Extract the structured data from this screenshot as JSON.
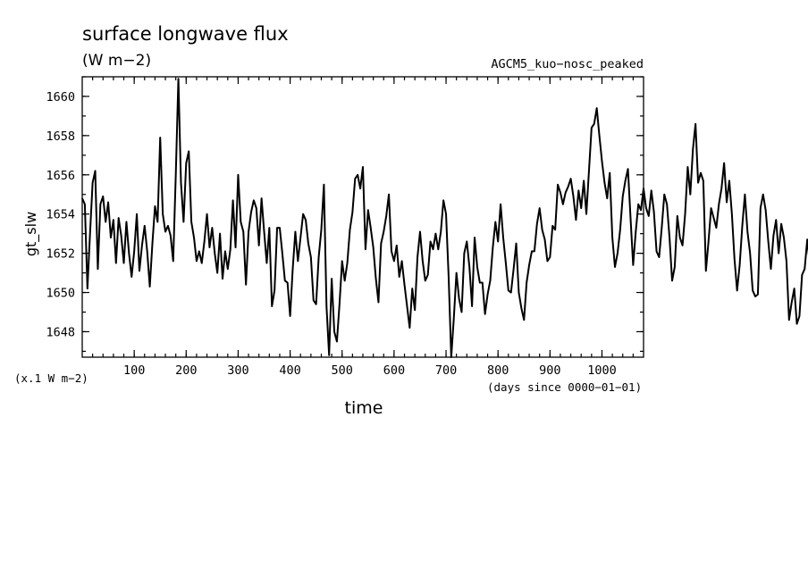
{
  "page": {
    "title": "surface longwave flux",
    "units": "(W m−2)",
    "run_name": "AGCM5_kuo−nosc_peaked",
    "y_axis_label": "gt_slw",
    "y_scale_note": "(x.1 W m−2)",
    "x_axis_label": "time",
    "x_axis_units": "(days since 0000−01−01)"
  },
  "chart_data": {
    "type": "line",
    "title": "surface longwave flux",
    "subtitle": "(W m−2)",
    "annotation": "AGCM5_kuo−nosc_peaked",
    "xlabel": "time",
    "ylabel": "gt_slw",
    "xlim": [
      0,
      1080
    ],
    "ylim": [
      1646.7,
      1661.0
    ],
    "x_ticks": [
      100,
      200,
      300,
      400,
      500,
      600,
      700,
      800,
      900,
      1000
    ],
    "y_ticks": [
      1648,
      1650,
      1652,
      1654,
      1656,
      1658,
      1660
    ],
    "x_minor_step": 20,
    "y_minor_step": 1,
    "grid": false,
    "x_values_start": 0,
    "x_values_step": 5,
    "series": [
      {
        "values": [
          1654.8,
          1654.5,
          1650.2,
          1653.0,
          1655.6,
          1656.2,
          1651.2,
          1654.5,
          1654.9,
          1653.6,
          1654.6,
          1652.8,
          1653.7,
          1651.5,
          1653.8,
          1652.9,
          1651.5,
          1653.6,
          1652.0,
          1650.8,
          1652.1,
          1654.0,
          1651.1,
          1652.4,
          1653.4,
          1652.1,
          1650.3,
          1652.5,
          1654.4,
          1653.6,
          1657.9,
          1654.0,
          1653.1,
          1653.4,
          1652.9,
          1651.6,
          1656.0,
          1660.9,
          1655.6,
          1653.6,
          1656.6,
          1657.2,
          1653.6,
          1652.8,
          1651.6,
          1652.1,
          1651.5,
          1652.6,
          1654.0,
          1652.3,
          1653.3,
          1652.0,
          1651.0,
          1653.0,
          1650.7,
          1652.1,
          1651.2,
          1652.2,
          1654.7,
          1652.3,
          1656.0,
          1653.6,
          1653.1,
          1650.4,
          1653.1,
          1654.1,
          1654.7,
          1654.3,
          1652.4,
          1654.8,
          1653.1,
          1651.5,
          1653.3,
          1649.3,
          1650.1,
          1653.3,
          1653.3,
          1652.0,
          1650.6,
          1650.5,
          1648.8,
          1651.2,
          1653.1,
          1651.6,
          1652.8,
          1654.0,
          1653.7,
          1652.5,
          1651.8,
          1649.6,
          1649.4,
          1651.8,
          1653.2,
          1655.5,
          1649.3,
          1646.8,
          1650.7,
          1648.0,
          1647.5,
          1649.4,
          1651.6,
          1650.6,
          1651.5,
          1653.2,
          1654.1,
          1655.8,
          1656.0,
          1655.3,
          1656.4,
          1652.2,
          1654.2,
          1653.3,
          1652.3,
          1650.7,
          1649.5,
          1652.5,
          1653.1,
          1653.9,
          1655.0,
          1652.1,
          1651.6,
          1652.4,
          1650.8,
          1651.6,
          1650.4,
          1649.3,
          1648.2,
          1650.2,
          1649.1,
          1651.8,
          1653.1,
          1651.6,
          1650.6,
          1650.9,
          1652.6,
          1652.2,
          1653.0,
          1652.2,
          1653.1,
          1654.7,
          1654.0,
          1650.8,
          1646.7,
          1648.7,
          1651.0,
          1649.7,
          1649.0,
          1652.0,
          1652.6,
          1651.3,
          1649.3,
          1652.8,
          1651.3,
          1650.5,
          1650.5,
          1648.9,
          1649.9,
          1650.6,
          1652.3,
          1653.6,
          1652.6,
          1654.5,
          1652.8,
          1651.5,
          1650.1,
          1650.0,
          1651.2,
          1652.5,
          1650.0,
          1649.2,
          1648.6,
          1650.5,
          1651.4,
          1652.1,
          1652.1,
          1653.5,
          1654.3,
          1653.2,
          1652.7,
          1651.6,
          1651.8,
          1653.4,
          1653.2,
          1655.5,
          1655.1,
          1654.5,
          1655.1,
          1655.4,
          1655.8,
          1654.9,
          1653.7,
          1655.2,
          1654.3,
          1655.7,
          1654.0,
          1656.2,
          1658.4,
          1658.6,
          1659.4,
          1658.0,
          1656.7,
          1655.6,
          1654.8,
          1656.1,
          1652.8,
          1651.3,
          1652.0,
          1653.2,
          1654.9,
          1655.7,
          1656.3,
          1653.8,
          1651.4,
          1653.1,
          1654.5,
          1654.2,
          1655.3,
          1654.3,
          1653.9,
          1655.2,
          1654.1,
          1652.1,
          1651.8,
          1653.3,
          1655.0,
          1654.5,
          1652.8,
          1650.6,
          1651.3,
          1653.9,
          1652.8,
          1652.4,
          1654.0,
          1656.4,
          1655.0,
          1657.3,
          1658.6,
          1655.6,
          1656.1,
          1655.7,
          1651.1,
          1652.6,
          1654.3,
          1653.8,
          1653.3,
          1654.5,
          1655.3,
          1656.6,
          1654.6,
          1655.7,
          1654.0,
          1651.7,
          1650.1,
          1651.4,
          1653.4,
          1655.0,
          1653.1,
          1652.0,
          1650.1,
          1649.8,
          1649.9,
          1654.3,
          1655.0,
          1654.2,
          1652.6,
          1651.2,
          1652.9,
          1653.7,
          1652.0,
          1653.5,
          1652.8,
          1651.6,
          1648.6,
          1649.5,
          1650.2,
          1648.4,
          1648.8,
          1650.9,
          1651.2,
          1652.7,
          1651.4,
          1651.0,
          1651.1,
          1652.8,
          1653.1,
          1652.5,
          1653.6,
          1654.2,
          1651.3,
          1650.8
        ]
      }
    ]
  }
}
